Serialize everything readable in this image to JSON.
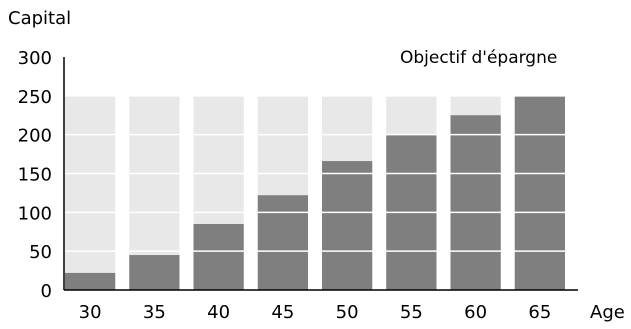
{
  "chart_data": {
    "type": "bar",
    "ylabel": "Capital",
    "xlabel": "Age",
    "annotation": "Objectif d'épargne",
    "categories": [
      "30",
      "35",
      "40",
      "45",
      "50",
      "55",
      "60",
      "65"
    ],
    "series": [
      {
        "name": "",
        "values": [
          22,
          45,
          85,
          122,
          166,
          200,
          225,
          250
        ]
      },
      {
        "name": "Objectif d'épargne",
        "values": [
          250,
          250,
          250,
          250,
          250,
          250,
          250,
          250
        ]
      }
    ],
    "ylim": [
      0,
      300
    ],
    "yticks": [
      "0",
      "50",
      "100",
      "150",
      "200",
      "250",
      "300"
    ],
    "grid": false,
    "colors": {
      "filled": "#7f7f7f",
      "goal": "#e8e8e8",
      "separator": "#ffffff",
      "axis": "#000000"
    }
  }
}
